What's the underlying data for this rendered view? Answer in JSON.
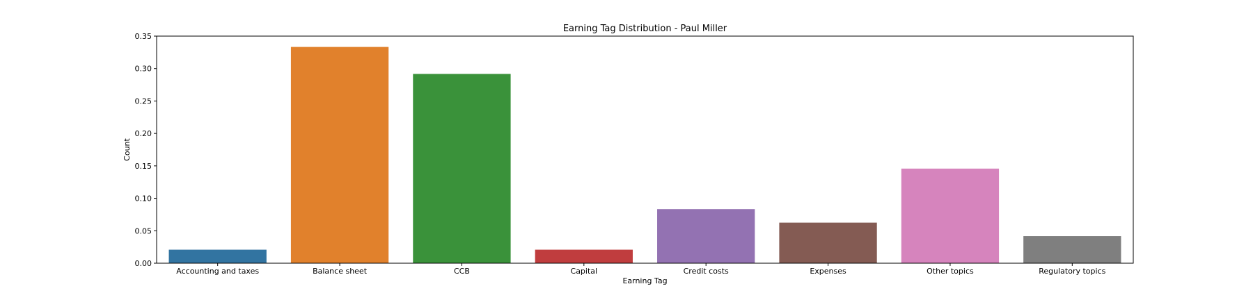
{
  "chart_data": {
    "type": "bar",
    "title": "Earning Tag Distribution - Paul Miller",
    "xlabel": "Earning Tag",
    "ylabel": "Count",
    "categories": [
      "Accounting and taxes",
      "Balance sheet",
      "CCB",
      "Capital",
      "Credit costs",
      "Expenses",
      "Other topics",
      "Regulatory topics"
    ],
    "values": [
      0.0208,
      0.3333,
      0.2917,
      0.0208,
      0.0833,
      0.0625,
      0.1458,
      0.0417
    ],
    "colors": [
      "#3274a1",
      "#e1812c",
      "#3a923a",
      "#c03d3e",
      "#9372b2",
      "#845b53",
      "#d684bd",
      "#7f7f7f"
    ],
    "ylim": [
      0,
      0.35
    ],
    "yticks": [
      0.0,
      0.05,
      0.1,
      0.15,
      0.2,
      0.25,
      0.3,
      0.35
    ],
    "ytick_labels": [
      "0.00",
      "0.05",
      "0.10",
      "0.15",
      "0.20",
      "0.25",
      "0.30",
      "0.35"
    ],
    "grid": false,
    "legend": "none"
  }
}
